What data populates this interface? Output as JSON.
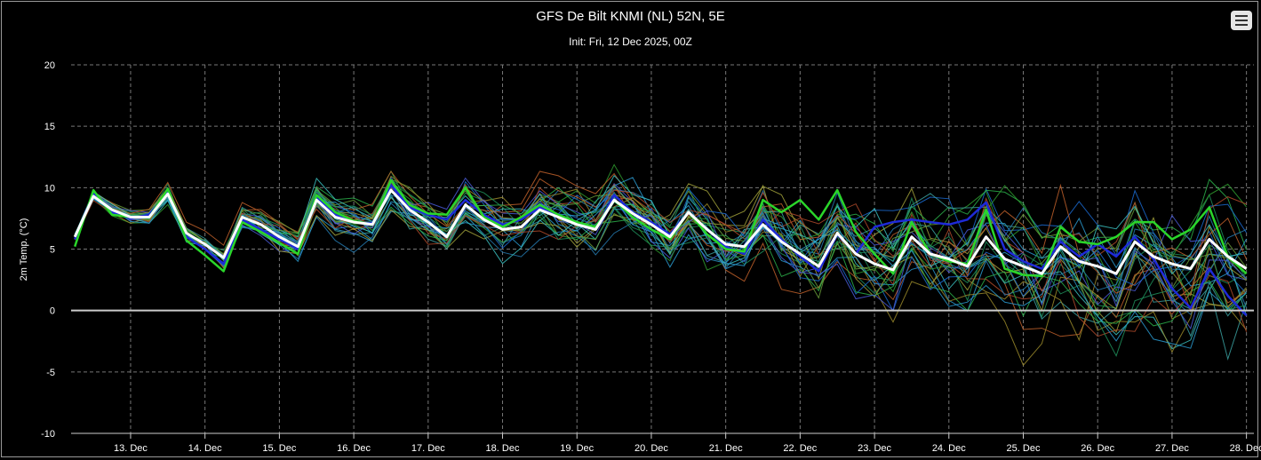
{
  "chart_data": {
    "type": "line",
    "title": "GFS De Bilt KNMI (NL) 52N, 5E",
    "subtitle": "Init: Fri, 12 Dec 2025, 00Z",
    "ylabel": "2m Temp. (°C)",
    "ylim": [
      -10,
      20
    ],
    "yticks": [
      -10,
      -5,
      0,
      5,
      10,
      15,
      20
    ],
    "xlim_days": [
      12.2,
      28.1
    ],
    "xticks": [
      {
        "day": 13,
        "label": "13. Dec"
      },
      {
        "day": 14,
        "label": "14. Dec"
      },
      {
        "day": 15,
        "label": "15. Dec"
      },
      {
        "day": 16,
        "label": "16. Dec"
      },
      {
        "day": 17,
        "label": "17. Dec"
      },
      {
        "day": 18,
        "label": "18. Dec"
      },
      {
        "day": 19,
        "label": "19. Dec"
      },
      {
        "day": 20,
        "label": "20. Dec"
      },
      {
        "day": 21,
        "label": "21. Dec"
      },
      {
        "day": 22,
        "label": "22. Dec"
      },
      {
        "day": 23,
        "label": "23. Dec"
      },
      {
        "day": 24,
        "label": "24. Dec"
      },
      {
        "day": 25,
        "label": "25. Dec"
      },
      {
        "day": 26,
        "label": "26. Dec"
      },
      {
        "day": 27,
        "label": "27. Dec"
      },
      {
        "day": 28,
        "label": "28. Dec"
      }
    ],
    "grid": true,
    "x_start_day": 12.25,
    "x_step_days": 0.25,
    "series": [
      {
        "role": "mean",
        "color": "#ffffff",
        "values": [
          6.0,
          9.3,
          8.2,
          7.6,
          7.6,
          9.5,
          6.3,
          5.4,
          4.3,
          7.6,
          7.0,
          6.0,
          5.2,
          9.0,
          7.6,
          7.2,
          7.0,
          9.8,
          8.2,
          7.2,
          6.0,
          8.6,
          7.4,
          6.6,
          6.8,
          8.2,
          7.6,
          7.0,
          6.6,
          9.0,
          7.9,
          7.0,
          6.0,
          8.0,
          6.6,
          5.4,
          5.2,
          7.0,
          5.6,
          4.6,
          3.6,
          6.3,
          4.6,
          3.8,
          3.3,
          6.0,
          4.6,
          4.2,
          3.6,
          6.0,
          4.2,
          3.6,
          3.0,
          5.2,
          4.0,
          3.6,
          3.0,
          5.6,
          4.4,
          3.8,
          3.4,
          5.8,
          4.4,
          3.4
        ]
      },
      {
        "role": "control",
        "color": "#2ad62a",
        "values": [
          5.2,
          9.8,
          7.8,
          7.6,
          7.6,
          9.9,
          5.7,
          4.5,
          3.2,
          7.2,
          6.4,
          5.5,
          4.6,
          9.4,
          8.0,
          7.3,
          7.0,
          10.6,
          8.6,
          7.9,
          7.8,
          10.0,
          7.6,
          6.8,
          7.6,
          8.6,
          7.8,
          7.2,
          6.8,
          9.0,
          7.6,
          6.6,
          5.8,
          8.0,
          6.2,
          5.0,
          4.8,
          9.0,
          8.0,
          9.0,
          7.4,
          9.8,
          6.4,
          4.6,
          3.0,
          7.2,
          4.6,
          4.0,
          3.8,
          8.2,
          3.4,
          2.9,
          2.8,
          6.8,
          5.6,
          5.4,
          6.0,
          7.2,
          7.2,
          5.8,
          6.6,
          8.4,
          4.4,
          3.0
        ]
      },
      {
        "role": "operational",
        "color": "#1e2ad8",
        "values": [
          5.8,
          9.6,
          8.0,
          7.5,
          7.8,
          9.7,
          6.0,
          5.0,
          3.8,
          7.4,
          6.6,
          5.8,
          5.0,
          9.2,
          7.8,
          7.2,
          7.1,
          10.2,
          8.4,
          7.8,
          7.4,
          9.0,
          7.8,
          7.0,
          7.4,
          8.4,
          7.8,
          7.2,
          6.6,
          9.4,
          8.0,
          7.2,
          6.2,
          8.0,
          6.6,
          5.2,
          4.6,
          7.4,
          5.8,
          4.4,
          3.2,
          6.2,
          4.6,
          6.8,
          7.2,
          7.4,
          7.2,
          7.0,
          7.4,
          8.8,
          5.0,
          4.0,
          3.4,
          5.6,
          4.4,
          5.4,
          4.4,
          6.0,
          4.2,
          1.8,
          0.2,
          3.4,
          1.2,
          -0.4
        ]
      }
    ]
  },
  "ui": {
    "menu_icon": "hamburger-menu-icon"
  }
}
